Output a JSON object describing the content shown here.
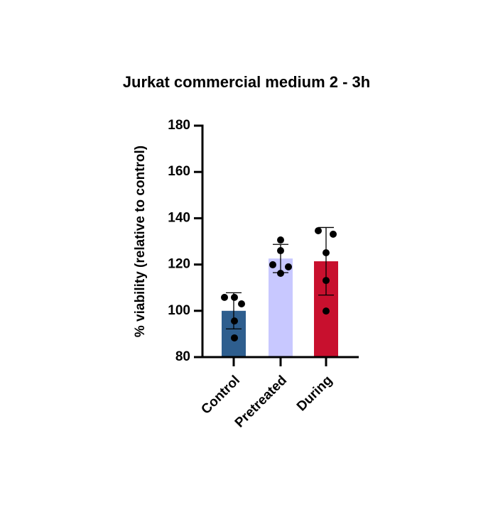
{
  "chart_data": {
    "type": "bar",
    "title": "Jurkat commercial medium 2 - 3h",
    "y_label": "% viability (relative to control)",
    "categories": [
      "Control",
      "Pretreated",
      "During"
    ],
    "values": [
      100,
      122.6,
      121.4
    ],
    "errors": [
      7.8,
      6.1,
      14.6
    ],
    "colors": [
      "#2e5e8e",
      "#c8c8ff",
      "#c8102e"
    ],
    "points": [
      [
        105.8,
        105.8,
        103,
        95.6,
        88.3
      ],
      [
        130.6,
        126,
        119.9,
        119,
        116.2
      ],
      [
        134.6,
        133.1,
        125.1,
        113.1,
        99.9
      ]
    ],
    "ylim": [
      80,
      180
    ],
    "yticks": [
      80,
      100,
      120,
      140,
      160,
      180
    ]
  }
}
